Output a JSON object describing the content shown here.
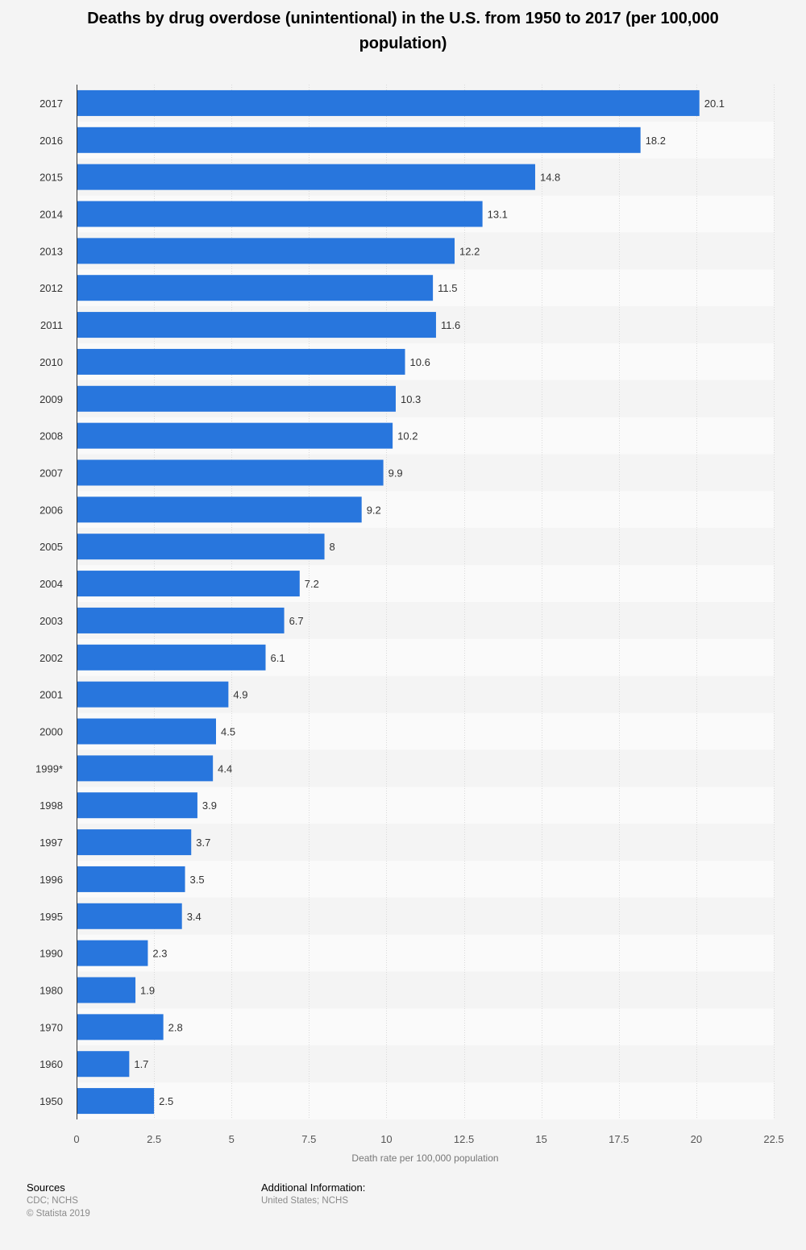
{
  "chart_data": {
    "type": "bar",
    "orientation": "horizontal",
    "title": "Deaths by drug overdose (unintentional) in the U.S. from 1950 to 2017 (per 100,000 population)",
    "xlabel": "Death rate per 100,000 population",
    "ylabel": "",
    "xlim": [
      0,
      22.5
    ],
    "xticks": [
      "0",
      "2.5",
      "5",
      "7.5",
      "10",
      "12.5",
      "15",
      "17.5",
      "20",
      "22.5"
    ],
    "categories": [
      "2017",
      "2016",
      "2015",
      "2014",
      "2013",
      "2012",
      "2011",
      "2010",
      "2009",
      "2008",
      "2007",
      "2006",
      "2005",
      "2004",
      "2003",
      "2002",
      "2001",
      "2000",
      "1999*",
      "1998",
      "1997",
      "1996",
      "1995",
      "1990",
      "1980",
      "1970",
      "1960",
      "1950"
    ],
    "values": [
      20.1,
      18.2,
      14.8,
      13.1,
      12.2,
      11.5,
      11.6,
      10.6,
      10.3,
      10.2,
      9.9,
      9.2,
      8,
      7.2,
      6.7,
      6.1,
      4.9,
      4.5,
      4.4,
      3.9,
      3.7,
      3.5,
      3.4,
      2.3,
      1.9,
      2.8,
      1.7,
      2.5
    ],
    "bar_color": "#2876dd",
    "grid": true
  },
  "footer": {
    "sources_label": "Sources",
    "sources_line1": "CDC; NCHS",
    "sources_line2": "© Statista 2019",
    "additional_label": "Additional Information:",
    "additional_line1": "United States; NCHS"
  }
}
